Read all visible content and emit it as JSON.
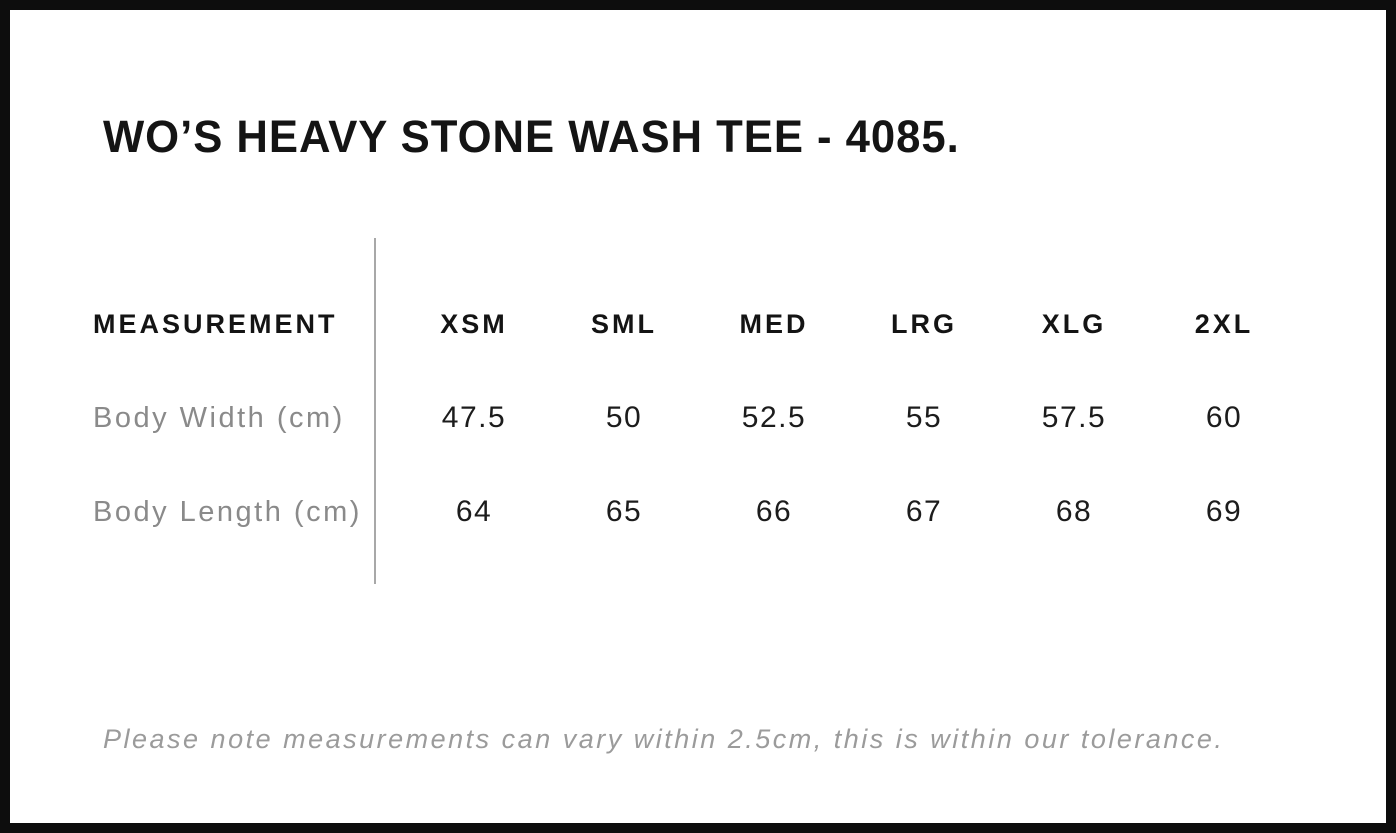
{
  "chart_data": {
    "type": "table",
    "title": "WO’S HEAVY STONE WASH TEE - 4085.",
    "columns": [
      "MEASUREMENT",
      "XSM",
      "SML",
      "MED",
      "LRG",
      "XLG",
      "2XL"
    ],
    "rows": [
      [
        "Body Width (cm)",
        47.5,
        50,
        52.5,
        55,
        57.5,
        60
      ],
      [
        "Body Length (cm)",
        64,
        65,
        66,
        67,
        68,
        69
      ]
    ],
    "note": "Please note measurements can vary within 2.5cm, this is within our tolerance.",
    "layout_hints": {
      "grid": "off",
      "label_column_divider": "vertical gray rule between label column and size columns"
    }
  },
  "colors": {
    "background": "#ffffff",
    "frame_border": "#0d0d0d",
    "text_primary": "#141414",
    "text_muted_labels": "#8a8a8a",
    "text_note": "#9b9b9b",
    "divider": "#a8a8a8"
  }
}
